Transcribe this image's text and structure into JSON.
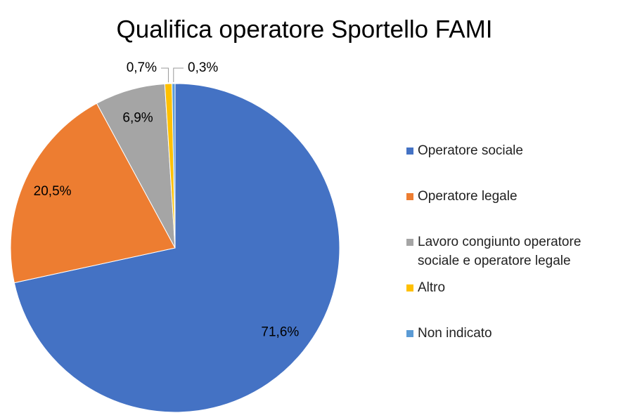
{
  "chart_data": {
    "type": "pie",
    "title": "Qualifica operatore Sportello FAMI",
    "categories": [
      "Operatore sociale",
      "Operatore legale",
      "Lavoro congiunto operatore sociale e operatore legale",
      "Altro",
      "Non indicato"
    ],
    "values": [
      71.6,
      20.5,
      6.9,
      0.7,
      0.3
    ],
    "value_labels": [
      "71,6%",
      "20,5%",
      "6,9%",
      "0,7%",
      "0,3%"
    ],
    "colors": [
      "#4472c4",
      "#ed7d31",
      "#a5a5a5",
      "#ffc000",
      "#5b9bd5"
    ],
    "legend": "right"
  }
}
